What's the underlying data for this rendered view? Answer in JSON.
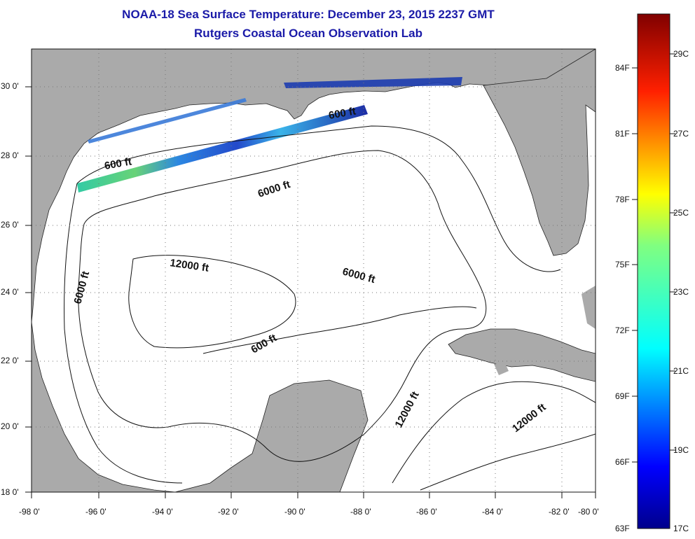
{
  "title": {
    "line1": "NOAA-18 Sea Surface Temperature:  December 23, 2015 2237 GMT",
    "line2": "Rutgers Coastal Ocean Observation Lab"
  },
  "colors": {
    "land": "#aaaaaa",
    "ocean": "#ffffff",
    "title": "#1a1aa8",
    "contour": "#111111"
  },
  "map": {
    "lon_range": [
      -98,
      -80
    ],
    "lat_range": [
      18,
      31
    ],
    "x_ticks": [
      "-98 0'",
      "-96 0'",
      "-94 0'",
      "-92 0'",
      "-90 0'",
      "-88 0'",
      "-86 0'",
      "-84 0'",
      "-82 0'",
      "-80 0'"
    ],
    "y_ticks": [
      "30 0'",
      "28 0'",
      "26 0'",
      "24 0'",
      "22 0'",
      "20 0'",
      "18 0'"
    ],
    "grid": "dotted"
  },
  "contours": {
    "labels": [
      {
        "text": "600 ft"
      },
      {
        "text": "600 ft"
      },
      {
        "text": "6000 ft"
      },
      {
        "text": "12000 ft"
      },
      {
        "text": "6000 ft"
      },
      {
        "text": "6000 ft"
      },
      {
        "text": "600 ft"
      },
      {
        "text": "12000 ft"
      },
      {
        "text": "12000 ft"
      }
    ]
  },
  "colorbar": {
    "fahrenheit": [
      "84F",
      "81F",
      "78F",
      "75F",
      "72F",
      "69F",
      "66F",
      "63F"
    ],
    "celsius": [
      "29C",
      "27C",
      "25C",
      "23C",
      "21C",
      "19C",
      "17C"
    ],
    "range_c": [
      17,
      30
    ]
  }
}
